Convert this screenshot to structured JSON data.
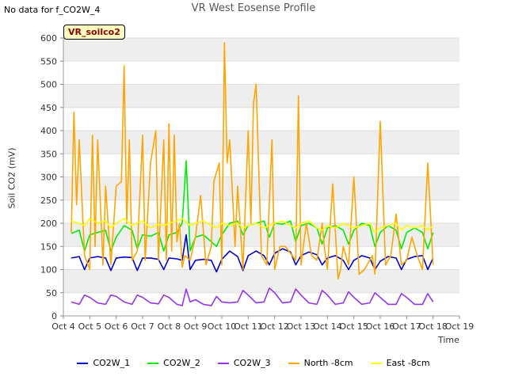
{
  "header": {
    "no_data_text": "No data for f_CO2W_4",
    "title": "VR West Eosense Profile",
    "badge": "VR_soilco2"
  },
  "chart_data": {
    "type": "line",
    "title": "VR West Eosense Profile",
    "xlabel": "Time",
    "ylabel": "Soil CO2 (mV)",
    "xlim": [
      4,
      19
    ],
    "ylim": [
      0,
      600
    ],
    "x_ticks": [
      "Oct 4",
      "Oct 5",
      "Oct 6",
      "Oct 7",
      "Oct 8",
      "Oct 9",
      "Oct 10",
      "Oct 11",
      "Oct 12",
      "Oct 13",
      "Oct 14",
      "Oct 15",
      "Oct 16",
      "Oct 17",
      "Oct 18",
      "Oct 19"
    ],
    "y_ticks": [
      0,
      50,
      100,
      150,
      200,
      250,
      300,
      350,
      400,
      450,
      500,
      550,
      600
    ],
    "grid": "horizontal bands",
    "legend_position": "bottom",
    "series": [
      {
        "name": "CO2W_1",
        "color": "#0000cc",
        "x": [
          4.3,
          4.6,
          4.8,
          5.0,
          5.3,
          5.6,
          5.8,
          6.0,
          6.3,
          6.6,
          6.8,
          7.0,
          7.3,
          7.6,
          7.8,
          8.0,
          8.3,
          8.5,
          8.65,
          8.8,
          9.0,
          9.3,
          9.6,
          9.8,
          10.0,
          10.3,
          10.6,
          10.8,
          11.0,
          11.3,
          11.6,
          11.8,
          12.0,
          12.3,
          12.6,
          12.8,
          13.0,
          13.3,
          13.6,
          13.8,
          14.0,
          14.3,
          14.6,
          14.8,
          15.0,
          15.3,
          15.6,
          15.8,
          16.0,
          16.3,
          16.6,
          16.8,
          17.0,
          17.3,
          17.6,
          17.8,
          18.0
        ],
        "values": [
          125,
          128,
          100,
          125,
          128,
          125,
          98,
          125,
          127,
          126,
          98,
          125,
          125,
          122,
          100,
          125,
          123,
          120,
          175,
          100,
          120,
          122,
          120,
          95,
          122,
          140,
          128,
          98,
          130,
          140,
          130,
          110,
          135,
          145,
          138,
          110,
          130,
          138,
          132,
          110,
          125,
          130,
          120,
          100,
          120,
          130,
          125,
          100,
          118,
          128,
          125,
          100,
          122,
          128,
          130,
          100,
          125
        ]
      },
      {
        "name": "CO2W_2",
        "color": "#00ee00",
        "x": [
          4.3,
          4.6,
          4.8,
          5.0,
          5.3,
          5.6,
          5.8,
          6.0,
          6.3,
          6.6,
          6.8,
          7.0,
          7.3,
          7.6,
          7.8,
          8.0,
          8.3,
          8.5,
          8.65,
          8.8,
          9.0,
          9.3,
          9.6,
          9.8,
          10.0,
          10.3,
          10.6,
          10.8,
          11.0,
          11.3,
          11.6,
          11.8,
          12.0,
          12.3,
          12.6,
          12.8,
          13.0,
          13.3,
          13.6,
          13.8,
          14.0,
          14.3,
          14.6,
          14.8,
          15.0,
          15.3,
          15.6,
          15.8,
          16.0,
          16.3,
          16.6,
          16.8,
          17.0,
          17.3,
          17.6,
          17.8,
          18.0
        ],
        "values": [
          178,
          185,
          140,
          175,
          180,
          185,
          140,
          170,
          195,
          185,
          145,
          175,
          172,
          180,
          140,
          175,
          180,
          200,
          335,
          140,
          170,
          175,
          160,
          150,
          175,
          200,
          205,
          175,
          195,
          200,
          205,
          170,
          200,
          198,
          205,
          160,
          195,
          200,
          190,
          155,
          190,
          195,
          185,
          155,
          185,
          200,
          195,
          150,
          180,
          195,
          185,
          145,
          180,
          190,
          180,
          145,
          180
        ]
      },
      {
        "name": "CO2W_3",
        "color": "#9933ee",
        "x": [
          4.3,
          4.6,
          4.8,
          5.0,
          5.3,
          5.6,
          5.8,
          6.0,
          6.3,
          6.6,
          6.8,
          7.0,
          7.3,
          7.6,
          7.8,
          8.0,
          8.3,
          8.5,
          8.65,
          8.8,
          9.0,
          9.3,
          9.6,
          9.8,
          10.0,
          10.3,
          10.6,
          10.8,
          11.0,
          11.3,
          11.6,
          11.8,
          12.0,
          12.3,
          12.6,
          12.8,
          13.0,
          13.3,
          13.6,
          13.8,
          14.0,
          14.3,
          14.6,
          14.8,
          15.0,
          15.3,
          15.6,
          15.8,
          16.0,
          16.3,
          16.6,
          16.8,
          17.0,
          17.3,
          17.6,
          17.8,
          18.0
        ],
        "values": [
          30,
          25,
          45,
          40,
          28,
          25,
          45,
          42,
          30,
          25,
          45,
          40,
          28,
          26,
          45,
          40,
          25,
          22,
          58,
          30,
          35,
          25,
          22,
          42,
          30,
          28,
          30,
          55,
          45,
          28,
          30,
          60,
          50,
          28,
          30,
          58,
          45,
          28,
          25,
          55,
          45,
          25,
          28,
          52,
          40,
          25,
          28,
          50,
          40,
          25,
          25,
          48,
          40,
          25,
          25,
          48,
          30
        ]
      },
      {
        "name": "North -8cm",
        "color": "#ffa500",
        "x": [
          4.3,
          4.4,
          4.5,
          4.6,
          4.8,
          5.0,
          5.1,
          5.2,
          5.3,
          5.5,
          5.6,
          5.8,
          6.0,
          6.2,
          6.3,
          6.4,
          6.5,
          6.6,
          6.8,
          7.0,
          7.1,
          7.3,
          7.5,
          7.6,
          7.8,
          7.9,
          8.0,
          8.1,
          8.2,
          8.3,
          8.4,
          8.5,
          8.6,
          8.8,
          9.0,
          9.2,
          9.4,
          9.6,
          9.7,
          9.9,
          10.0,
          10.1,
          10.2,
          10.3,
          10.5,
          10.6,
          10.8,
          11.0,
          11.1,
          11.2,
          11.3,
          11.5,
          11.7,
          11.9,
          12.0,
          12.2,
          12.4,
          12.6,
          12.8,
          12.9,
          13.0,
          13.2,
          13.4,
          13.6,
          13.8,
          13.9,
          14.0,
          14.2,
          14.4,
          14.5,
          14.6,
          14.8,
          15.0,
          15.2,
          15.4,
          15.6,
          15.7,
          15.8,
          16.0,
          16.2,
          16.4,
          16.6,
          16.8,
          17.0,
          17.2,
          17.4,
          17.6,
          17.8,
          18.0
        ],
        "values": [
          180,
          440,
          240,
          380,
          130,
          100,
          390,
          150,
          380,
          110,
          280,
          110,
          280,
          290,
          540,
          200,
          380,
          120,
          140,
          390,
          120,
          330,
          400,
          120,
          380,
          120,
          415,
          140,
          390,
          160,
          200,
          105,
          130,
          120,
          170,
          260,
          110,
          150,
          290,
          330,
          110,
          590,
          330,
          380,
          150,
          280,
          100,
          400,
          200,
          460,
          500,
          130,
          110,
          380,
          100,
          150,
          150,
          135,
          120,
          475,
          110,
          200,
          130,
          120,
          200,
          140,
          100,
          285,
          80,
          100,
          150,
          110,
          300,
          90,
          100,
          120,
          130,
          90,
          420,
          110,
          130,
          220,
          110,
          120,
          170,
          130,
          100,
          330,
          110
        ]
      },
      {
        "name": "East -8cm",
        "color": "#ffff00",
        "x": [
          4.3,
          4.6,
          4.8,
          5.0,
          5.3,
          5.6,
          5.8,
          6.0,
          6.3,
          6.6,
          6.8,
          7.0,
          7.3,
          7.6,
          7.8,
          8.0,
          8.3,
          8.5,
          8.8,
          9.0,
          9.3,
          9.6,
          9.8,
          10.0,
          10.3,
          10.6,
          10.8,
          11.0,
          11.3,
          11.6,
          11.8,
          12.0,
          12.3,
          12.6,
          12.8,
          13.0,
          13.3,
          13.6,
          13.8,
          14.0,
          14.3,
          14.6,
          14.8,
          15.0,
          15.3,
          15.6,
          15.8,
          16.0,
          16.3,
          16.6,
          16.8,
          17.0,
          17.3,
          17.6,
          17.8,
          18.0
        ],
        "values": [
          205,
          200,
          195,
          210,
          200,
          205,
          190,
          200,
          210,
          195,
          200,
          205,
          190,
          198,
          195,
          200,
          205,
          210,
          195,
          200,
          205,
          195,
          190,
          200,
          195,
          200,
          190,
          195,
          200,
          190,
          195,
          200,
          205,
          195,
          190,
          200,
          205,
          190,
          185,
          195,
          190,
          200,
          195,
          190,
          195,
          200,
          180,
          190,
          195,
          200,
          185,
          195,
          190,
          195,
          185,
          195
        ]
      }
    ]
  },
  "legend": {
    "items": [
      {
        "label": "CO2W_1",
        "color": "#0000cc"
      },
      {
        "label": "CO2W_2",
        "color": "#00ee00"
      },
      {
        "label": "CO2W_3",
        "color": "#9933ee"
      },
      {
        "label": "North -8cm",
        "color": "#ffa500"
      },
      {
        "label": "East -8cm",
        "color": "#ffff00"
      }
    ]
  }
}
